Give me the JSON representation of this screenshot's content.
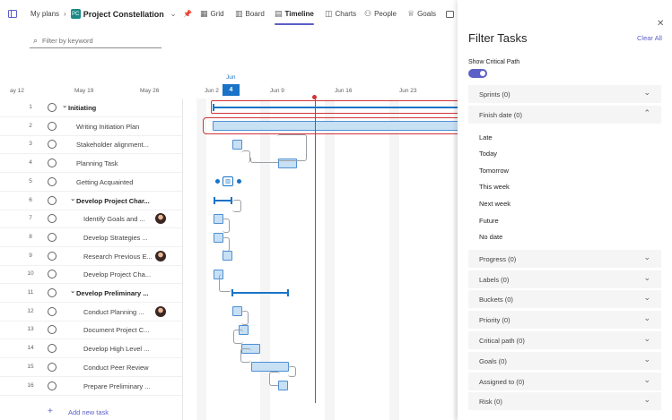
{
  "header": {
    "my_plans": "My plans",
    "plan_title": "Project Constellation",
    "tabs": [
      {
        "label": "Grid",
        "icon": "grid-icon"
      },
      {
        "label": "Board",
        "icon": "board-icon"
      },
      {
        "label": "Timeline",
        "icon": "timeline-icon",
        "active": true
      },
      {
        "label": "Charts",
        "icon": "charts-icon"
      },
      {
        "label": "People",
        "icon": "people-icon"
      },
      {
        "label": "Goals",
        "icon": "goals-icon"
      }
    ]
  },
  "search": {
    "placeholder": "Filter by keyword"
  },
  "timeline": {
    "month": "Jun",
    "today_day": "4",
    "dates": [
      "ay 12",
      "May 19",
      "May 26",
      "Jun 2",
      "Jun 9",
      "Jun 16",
      "Jun 23"
    ]
  },
  "tasks": [
    {
      "num": "1",
      "name": "Initiating",
      "level": 0,
      "summary": true
    },
    {
      "num": "2",
      "name": "Writing Initiation Plan",
      "level": 1
    },
    {
      "num": "3",
      "name": "Stakeholder alignment...",
      "level": 1
    },
    {
      "num": "4",
      "name": "Planning Task",
      "level": 1
    },
    {
      "num": "5",
      "name": "Getting Acquainted",
      "level": 1
    },
    {
      "num": "6",
      "name": "Develop Project Char...",
      "level": 1,
      "summary": true
    },
    {
      "num": "7",
      "name": "Identify Goals and ...",
      "level": 2,
      "avatar": true
    },
    {
      "num": "8",
      "name": "Develop Strategies ...",
      "level": 2
    },
    {
      "num": "9",
      "name": "Research Previous E...",
      "level": 2,
      "avatar": true
    },
    {
      "num": "10",
      "name": "Develop Project Cha...",
      "level": 2
    },
    {
      "num": "11",
      "name": "Develop Preliminary ...",
      "level": 1,
      "summary": true
    },
    {
      "num": "12",
      "name": "Conduct Planning ...",
      "level": 2,
      "avatar": true
    },
    {
      "num": "13",
      "name": "Document Project C...",
      "level": 2
    },
    {
      "num": "14",
      "name": "Develop High Level ...",
      "level": 2
    },
    {
      "num": "15",
      "name": "Conduct Peer Review",
      "level": 2
    },
    {
      "num": "16",
      "name": "Prepare Preliminary ...",
      "level": 2
    }
  ],
  "add_task": "Add new task",
  "filter_panel": {
    "title": "Filter Tasks",
    "clear_all": "Clear All",
    "critical_path_label": "Show Critical Path",
    "critical_path_on": true,
    "sections": [
      {
        "label": "Sprints (0)",
        "expanded": false
      },
      {
        "label": "Finish date (0)",
        "expanded": true,
        "options": [
          "Late",
          "Today",
          "Tomorrow",
          "This week",
          "Next week",
          "Future",
          "No date"
        ]
      },
      {
        "label": "Progress (0)",
        "expanded": false
      },
      {
        "label": "Labels (0)",
        "expanded": false
      },
      {
        "label": "Buckets (0)",
        "expanded": false
      },
      {
        "label": "Priority (0)",
        "expanded": false
      },
      {
        "label": "Critical path (0)",
        "expanded": false
      },
      {
        "label": "Goals (0)",
        "expanded": false
      },
      {
        "label": "Assigned to (0)",
        "expanded": false
      },
      {
        "label": "Risk (0)",
        "expanded": false
      }
    ]
  },
  "colors": {
    "accent": "#5b5fc7",
    "today": "#1a73c7",
    "critical": "#d13438",
    "bar_fill": "#c7e0f4"
  }
}
